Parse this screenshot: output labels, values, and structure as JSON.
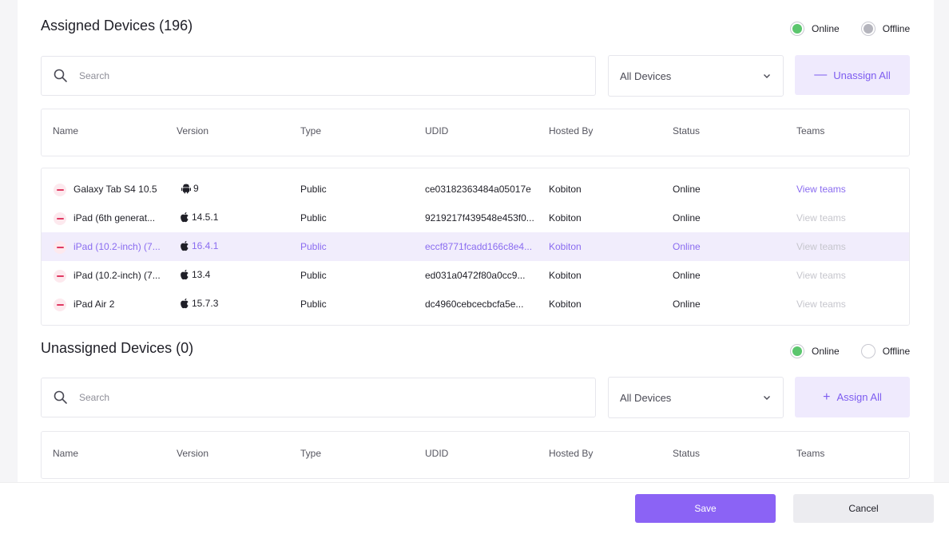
{
  "colors": {
    "accent": "#8b63f5",
    "online": "#5cc66e",
    "offline": "#b5b5bd",
    "remove": "#e03a62"
  },
  "assigned": {
    "title": "Assigned Devices (196)",
    "legend": {
      "online": "Online",
      "offline": "Offline"
    },
    "search_placeholder": "Search",
    "filter_value": "All Devices",
    "action_label": "Unassign All",
    "columns": [
      "Name",
      "Version",
      "Type",
      "UDID",
      "Hosted By",
      "Status",
      "Teams"
    ],
    "rows": [
      {
        "name": "Galaxy Tab S4 10.5",
        "os_icon": "android-icon",
        "version": "9",
        "type": "Public",
        "udid": "ce03182363484a05017e",
        "hosted_by": "Kobiton",
        "status": "Online",
        "teams": "View teams"
      },
      {
        "name": "iPad (6th generat...",
        "os_icon": "apple-icon",
        "version": "14.5.1",
        "type": "Public",
        "udid": "9219217f439548e453f0...",
        "hosted_by": "Kobiton",
        "status": "Online",
        "teams": "View teams"
      },
      {
        "name": "iPad (10.2-inch) (7...",
        "os_icon": "apple-icon",
        "version": "16.4.1",
        "type": "Public",
        "udid": "eccf8771fcadd166c8e4...",
        "hosted_by": "Kobiton",
        "status": "Online",
        "teams": "View teams"
      },
      {
        "name": "iPad (10.2-inch) (7...",
        "os_icon": "apple-icon",
        "version": "13.4",
        "type": "Public",
        "udid": "ed031a0472f80a0cc9...",
        "hosted_by": "Kobiton",
        "status": "Online",
        "teams": "View teams"
      },
      {
        "name": "iPad Air 2",
        "os_icon": "apple-icon",
        "version": "15.7.3",
        "type": "Public",
        "udid": "dc4960cebcecbcfa5e...",
        "hosted_by": "Kobiton",
        "status": "Online",
        "teams": "View teams"
      }
    ]
  },
  "unassigned": {
    "title": "Unassigned Devices (0)",
    "legend": {
      "online": "Online",
      "offline": "Offline"
    },
    "search_placeholder": "Search",
    "filter_value": "All Devices",
    "action_label": "Assign All",
    "columns": [
      "Name",
      "Version",
      "Type",
      "UDID",
      "Hosted By",
      "Status",
      "Teams"
    ]
  },
  "footer": {
    "save_label": "Save",
    "cancel_label": "Cancel"
  }
}
